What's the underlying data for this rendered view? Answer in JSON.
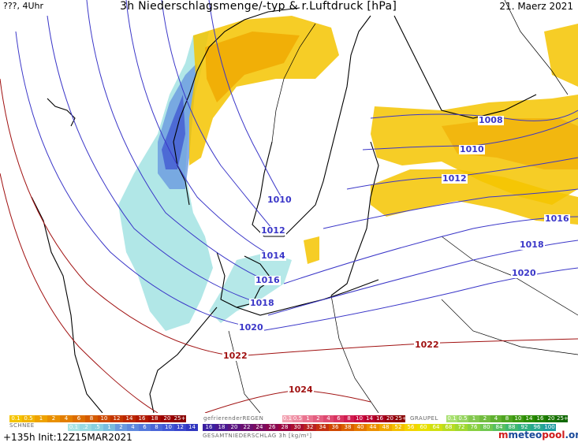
{
  "header": {
    "left": "???, 4Uhr",
    "title": "3h Niederschlagsmenge/-typ & r.Luftdruck [hPa]",
    "date": "21. Maerz 2021"
  },
  "isobars": {
    "labels": [
      "1008",
      "1010",
      "1012",
      "1010",
      "1012",
      "1014",
      "1016",
      "1018",
      "1020",
      "1016",
      "1018",
      "1020",
      "1022",
      "1022",
      "1024"
    ]
  },
  "legend": {
    "rain_values": [
      "0.1",
      "0.5",
      "1",
      "2",
      "4",
      "6",
      "8",
      "10",
      "12",
      "14",
      "16",
      "18",
      "20",
      "25+"
    ],
    "freezing_label": "gefrierenderREGEN",
    "freezing_values": [
      "0.1",
      "0.5",
      "1",
      "2",
      "4",
      "6",
      "8",
      "10",
      "14",
      "16",
      "20",
      "25+"
    ],
    "graupel_label": "GRAUPEL",
    "graupel_values": [
      "0.1",
      "0.5",
      "1",
      "2",
      "4",
      "8",
      "10",
      "14",
      "16",
      "20",
      "25+"
    ],
    "snow_label": "SCHNEE",
    "snow_values": [
      "0.1",
      ".2",
      ".5",
      "1",
      "2",
      "4",
      "6",
      "8",
      "10",
      "12",
      "14"
    ],
    "total_values": [
      "16",
      "18",
      "20",
      "22",
      "24",
      "26",
      "28",
      "30",
      "32",
      "34",
      "36",
      "38",
      "40",
      "44",
      "48",
      "52",
      "56",
      "60",
      "64",
      "68",
      "72",
      "76",
      "80",
      "84",
      "88",
      "92",
      "96",
      "100"
    ],
    "total_label": "GESAMTNIEDERSCHLAG 3h [kg/m²]"
  },
  "run_info": "+135h Init:12Z15MAR2021",
  "logo": {
    "m": "m",
    "name": "meteo",
    "name2": "pool",
    "tld": ".org"
  },
  "colors": {
    "rain": [
      "#f5c400",
      "#f0a800",
      "#e59400",
      "#dd7a00",
      "#d36400",
      "#c85000"
    ],
    "snow": [
      "#a8e4e4",
      "#8fd0e0",
      "#6a9ae0",
      "#5070e0",
      "#3a50d0"
    ],
    "isobar": "#3a36c8",
    "isobar_high": "#a01010"
  }
}
